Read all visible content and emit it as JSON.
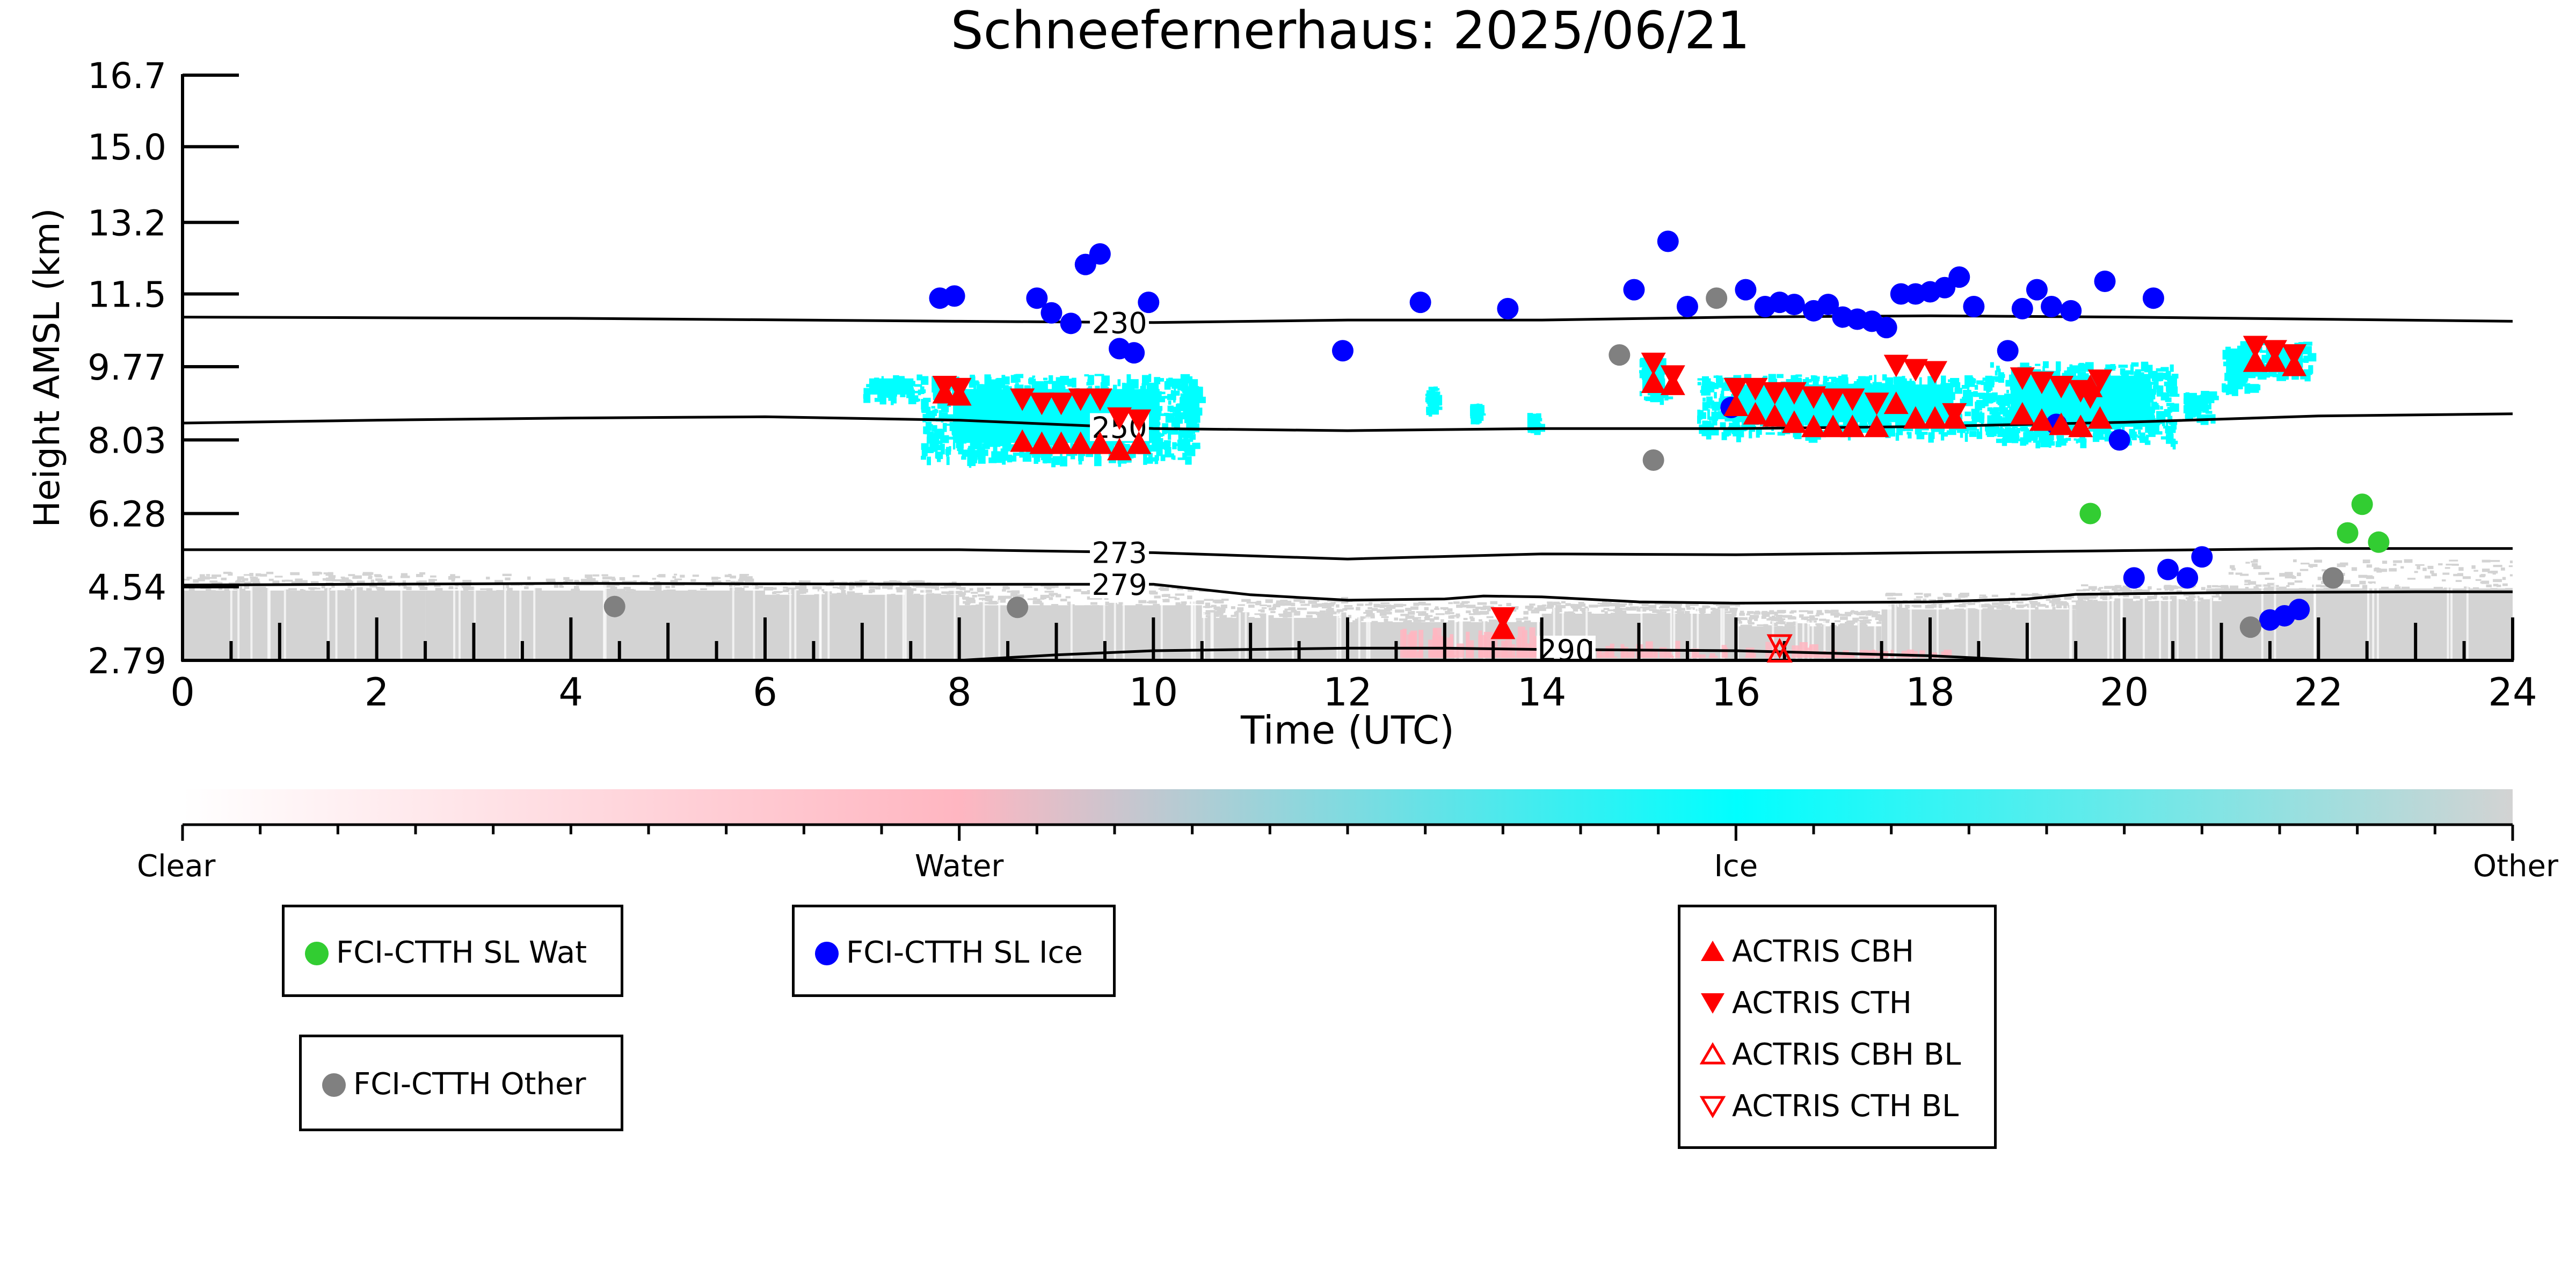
{
  "chart_data": {
    "type": "scatter",
    "title": "Schneefernerhaus: 2025/06/21",
    "xlabel": "Time (UTC)",
    "ylabel": "Height AMSL (km)",
    "xlim": [
      0,
      24
    ],
    "ylim": [
      2.79,
      16.7
    ],
    "x_ticks": [
      "0",
      "2",
      "4",
      "6",
      "8",
      "10",
      "12",
      "14",
      "16",
      "18",
      "20",
      "22",
      "24"
    ],
    "y_ticks": [
      "2.79",
      "4.54",
      "6.28",
      "8.03",
      "9.77",
      "11.5",
      "13.2",
      "15.0",
      "16.7"
    ],
    "colors": {
      "water_sat": "#32cd32",
      "ice_sat": "#0000ff",
      "other_sat": "#808080",
      "actris": "#ff0000",
      "ice_cloud": "#00ffff",
      "water_cloud": "#ffb6c1",
      "other_cloud": "#d3d3d3"
    },
    "isotherms": [
      {
        "label": "230",
        "label_x": 9.65,
        "points": [
          [
            0,
            10.95
          ],
          [
            4,
            10.92
          ],
          [
            8,
            10.85
          ],
          [
            10,
            10.82
          ],
          [
            12,
            10.88
          ],
          [
            14,
            10.88
          ],
          [
            16,
            10.95
          ],
          [
            18,
            10.98
          ],
          [
            20,
            10.95
          ],
          [
            22,
            10.9
          ],
          [
            24,
            10.85
          ]
        ]
      },
      {
        "label": "250",
        "label_x": 9.65,
        "points": [
          [
            0,
            8.43
          ],
          [
            2,
            8.5
          ],
          [
            4,
            8.55
          ],
          [
            6,
            8.58
          ],
          [
            8,
            8.5
          ],
          [
            10,
            8.3
          ],
          [
            12,
            8.25
          ],
          [
            14,
            8.3
          ],
          [
            16,
            8.3
          ],
          [
            18,
            8.35
          ],
          [
            20,
            8.45
          ],
          [
            22,
            8.6
          ],
          [
            24,
            8.65
          ]
        ]
      },
      {
        "label": "273",
        "label_x": 9.65,
        "points": [
          [
            0,
            5.42
          ],
          [
            4,
            5.42
          ],
          [
            8,
            5.42
          ],
          [
            10,
            5.35
          ],
          [
            12,
            5.2
          ],
          [
            14,
            5.32
          ],
          [
            16,
            5.3
          ],
          [
            18,
            5.35
          ],
          [
            20,
            5.4
          ],
          [
            22,
            5.45
          ],
          [
            24,
            5.45
          ]
        ]
      },
      {
        "label": "279",
        "label_x": 9.65,
        "points": [
          [
            0,
            4.58
          ],
          [
            4,
            4.62
          ],
          [
            8,
            4.6
          ],
          [
            10,
            4.6
          ],
          [
            11,
            4.35
          ],
          [
            12,
            4.22
          ],
          [
            13,
            4.25
          ],
          [
            13.4,
            4.32
          ],
          [
            14,
            4.3
          ],
          [
            15,
            4.18
          ],
          [
            16,
            4.15
          ],
          [
            18,
            4.18
          ],
          [
            19,
            4.25
          ],
          [
            19.5,
            4.36
          ],
          [
            21,
            4.4
          ],
          [
            23,
            4.42
          ],
          [
            24,
            4.42
          ]
        ]
      },
      {
        "label": "290",
        "label_x": 14.25,
        "points": [
          [
            8,
            2.79
          ],
          [
            9,
            2.92
          ],
          [
            10,
            3.02
          ],
          [
            12,
            3.08
          ],
          [
            13,
            3.08
          ],
          [
            14,
            3.05
          ],
          [
            16,
            3.02
          ],
          [
            18,
            2.9
          ],
          [
            19,
            2.79
          ]
        ]
      }
    ],
    "classification_scale": {
      "ticks": [
        "Clear",
        "Water",
        "Ice",
        "Other"
      ],
      "stops": [
        "#ffffff",
        "#ffb6c1",
        "#00ffff",
        "#d3d3d3"
      ]
    },
    "series": [
      {
        "name": "FCI-CTTH SL Wat",
        "marker": "circle",
        "color": "#32cd32",
        "points": [
          [
            19.65,
            6.28
          ],
          [
            22.3,
            5.82
          ],
          [
            22.45,
            6.5
          ],
          [
            22.62,
            5.6
          ]
        ]
      },
      {
        "name": "FCI-CTTH SL Ice",
        "marker": "circle",
        "color": "#0000ff",
        "points": [
          [
            7.8,
            11.4
          ],
          [
            7.95,
            11.45
          ],
          [
            8.8,
            11.4
          ],
          [
            8.95,
            11.05
          ],
          [
            9.15,
            10.8
          ],
          [
            9.3,
            12.2
          ],
          [
            9.45,
            12.45
          ],
          [
            9.65,
            10.2
          ],
          [
            9.8,
            10.1
          ],
          [
            9.95,
            11.3
          ],
          [
            11.95,
            10.15
          ],
          [
            12.75,
            11.3
          ],
          [
            13.65,
            11.15
          ],
          [
            14.95,
            11.6
          ],
          [
            15.3,
            12.75
          ],
          [
            15.5,
            11.2
          ],
          [
            16.1,
            11.6
          ],
          [
            16.3,
            11.2
          ],
          [
            16.45,
            11.3
          ],
          [
            16.6,
            11.25
          ],
          [
            16.8,
            11.1
          ],
          [
            16.95,
            11.25
          ],
          [
            17.1,
            10.95
          ],
          [
            17.25,
            10.9
          ],
          [
            17.4,
            10.85
          ],
          [
            17.55,
            10.7
          ],
          [
            17.7,
            11.5
          ],
          [
            17.85,
            11.5
          ],
          [
            18.0,
            11.55
          ],
          [
            18.15,
            11.65
          ],
          [
            18.3,
            11.9
          ],
          [
            18.45,
            11.2
          ],
          [
            18.8,
            10.15
          ],
          [
            18.95,
            11.15
          ],
          [
            19.1,
            11.6
          ],
          [
            19.25,
            11.2
          ],
          [
            19.45,
            11.1
          ],
          [
            19.8,
            11.8
          ],
          [
            19.95,
            8.03
          ],
          [
            20.3,
            11.4
          ],
          [
            15.95,
            8.8
          ],
          [
            19.3,
            8.4
          ],
          [
            20.1,
            4.75
          ],
          [
            20.45,
            4.95
          ],
          [
            20.65,
            4.75
          ],
          [
            20.8,
            5.25
          ],
          [
            21.5,
            3.75
          ],
          [
            21.65,
            3.85
          ],
          [
            21.8,
            4.0
          ]
        ]
      },
      {
        "name": "FCI-CTTH Other",
        "marker": "circle",
        "color": "#808080",
        "points": [
          [
            4.45,
            4.07
          ],
          [
            8.6,
            4.05
          ],
          [
            14.8,
            10.05
          ],
          [
            15.15,
            7.55
          ],
          [
            15.8,
            11.4
          ],
          [
            21.3,
            3.58
          ],
          [
            22.15,
            4.75
          ]
        ]
      },
      {
        "name": "ACTRIS CBH",
        "marker": "triangle-up",
        "color": "#ff0000",
        "points": [
          [
            7.85,
            9.1
          ],
          [
            8.0,
            9.05
          ],
          [
            8.65,
            7.95
          ],
          [
            8.85,
            7.9
          ],
          [
            9.05,
            7.9
          ],
          [
            9.25,
            7.9
          ],
          [
            9.45,
            7.9
          ],
          [
            9.65,
            7.75
          ],
          [
            9.85,
            7.9
          ],
          [
            15.15,
            9.35
          ],
          [
            15.35,
            9.3
          ],
          [
            16.0,
            8.8
          ],
          [
            16.2,
            8.6
          ],
          [
            16.4,
            8.55
          ],
          [
            16.6,
            8.4
          ],
          [
            16.8,
            8.3
          ],
          [
            17.0,
            8.3
          ],
          [
            17.2,
            8.3
          ],
          [
            17.45,
            8.3
          ],
          [
            17.65,
            8.85
          ],
          [
            17.85,
            8.5
          ],
          [
            18.05,
            8.5
          ],
          [
            18.25,
            8.5
          ],
          [
            18.95,
            8.6
          ],
          [
            19.15,
            8.45
          ],
          [
            19.35,
            8.35
          ],
          [
            19.55,
            8.3
          ],
          [
            19.75,
            8.5
          ],
          [
            19.65,
            9.25
          ],
          [
            21.35,
            9.85
          ],
          [
            21.55,
            9.85
          ],
          [
            21.75,
            9.75
          ],
          [
            13.6,
            3.5
          ]
        ]
      },
      {
        "name": "ACTRIS CTH",
        "marker": "triangle-down",
        "color": "#ff0000",
        "points": [
          [
            7.85,
            9.35
          ],
          [
            8.0,
            9.3
          ],
          [
            8.65,
            9.05
          ],
          [
            8.85,
            8.95
          ],
          [
            9.05,
            8.95
          ],
          [
            9.25,
            9.05
          ],
          [
            9.45,
            9.05
          ],
          [
            9.65,
            8.6
          ],
          [
            9.85,
            8.55
          ],
          [
            15.15,
            9.9
          ],
          [
            15.35,
            9.6
          ],
          [
            16.0,
            9.3
          ],
          [
            16.2,
            9.3
          ],
          [
            16.4,
            9.2
          ],
          [
            16.6,
            9.2
          ],
          [
            16.8,
            9.1
          ],
          [
            17.0,
            9.05
          ],
          [
            17.2,
            9.05
          ],
          [
            17.45,
            8.95
          ],
          [
            17.65,
            9.85
          ],
          [
            17.85,
            9.75
          ],
          [
            18.05,
            9.7
          ],
          [
            18.25,
            8.7
          ],
          [
            18.95,
            9.55
          ],
          [
            19.15,
            9.45
          ],
          [
            19.35,
            9.35
          ],
          [
            19.55,
            9.25
          ],
          [
            19.75,
            9.5
          ],
          [
            19.65,
            9.1
          ],
          [
            21.35,
            10.3
          ],
          [
            21.55,
            10.2
          ],
          [
            21.75,
            10.1
          ],
          [
            13.6,
            3.85
          ]
        ]
      },
      {
        "name": "ACTRIS CBH BL",
        "marker": "triangle-up-open",
        "color": "#ff0000",
        "points": [
          [
            16.45,
            2.95
          ]
        ]
      },
      {
        "name": "ACTRIS CTH BL",
        "marker": "triangle-down-open",
        "color": "#ff0000",
        "points": [
          [
            16.45,
            3.2
          ]
        ]
      }
    ],
    "ice_regions": [
      {
        "x": [
          7.0,
          7.6
        ],
        "y": [
          9.0,
          9.6
        ]
      },
      {
        "x": [
          7.6,
          10.4
        ],
        "y": [
          7.6,
          9.6
        ]
      },
      {
        "x": [
          10.3,
          10.45
        ],
        "y": [
          8.5,
          9.3
        ]
      },
      {
        "x": [
          12.8,
          12.9
        ],
        "y": [
          8.8,
          9.3
        ]
      },
      {
        "x": [
          13.25,
          13.35
        ],
        "y": [
          8.6,
          8.9
        ]
      },
      {
        "x": [
          13.85,
          13.95
        ],
        "y": [
          8.3,
          8.7
        ]
      },
      {
        "x": [
          15.0,
          15.3
        ],
        "y": [
          9.0,
          10.0
        ]
      },
      {
        "x": [
          15.6,
          18.6
        ],
        "y": [
          8.2,
          9.6
        ]
      },
      {
        "x": [
          18.6,
          20.5
        ],
        "y": [
          8.0,
          9.9
        ]
      },
      {
        "x": [
          20.6,
          20.9
        ],
        "y": [
          8.6,
          9.2
        ]
      },
      {
        "x": [
          21.0,
          21.4
        ],
        "y": [
          9.3,
          10.4
        ]
      },
      {
        "x": [
          21.4,
          21.9
        ],
        "y": [
          9.6,
          10.4
        ]
      }
    ],
    "water_regions": [
      {
        "x": [
          12.5,
          14.0
        ],
        "y": [
          2.85,
          3.6
        ]
      },
      {
        "x": [
          14.0,
          16.8
        ],
        "y": [
          2.85,
          3.3
        ]
      },
      {
        "x": [
          16.8,
          18.2
        ],
        "y": [
          2.85,
          3.05
        ]
      }
    ],
    "other_regions": [
      {
        "x": [
          0,
          2.5
        ],
        "y": [
          2.79,
          4.9
        ],
        "dense_top": 4.45
      },
      {
        "x": [
          2.5,
          6
        ],
        "y": [
          2.79,
          4.85
        ],
        "dense_top": 4.45
      },
      {
        "x": [
          6,
          8
        ],
        "y": [
          2.79,
          4.7
        ],
        "dense_top": 4.35
      },
      {
        "x": [
          8,
          10.5
        ],
        "y": [
          2.79,
          4.6
        ],
        "dense_top": 4.1
      },
      {
        "x": [
          10.5,
          12
        ],
        "y": [
          2.79,
          4.3
        ],
        "dense_top": 3.8
      },
      {
        "x": [
          12,
          14
        ],
        "y": [
          2.79,
          4.2
        ],
        "dense_top": 3.7
      },
      {
        "x": [
          14,
          16
        ],
        "y": [
          2.79,
          4.2
        ],
        "dense_top": 3.9
      },
      {
        "x": [
          16,
          17.5
        ],
        "y": [
          2.79,
          4.0
        ],
        "dense_top": 3.6
      },
      {
        "x": [
          17.5,
          19.5
        ],
        "y": [
          2.79,
          4.4
        ],
        "dense_top": 4.0
      },
      {
        "x": [
          19.5,
          21
        ],
        "y": [
          2.79,
          4.6
        ],
        "dense_top": 4.2
      },
      {
        "x": [
          21,
          24
        ],
        "y": [
          2.79,
          5.2
        ],
        "dense_top": 4.5
      }
    ]
  }
}
